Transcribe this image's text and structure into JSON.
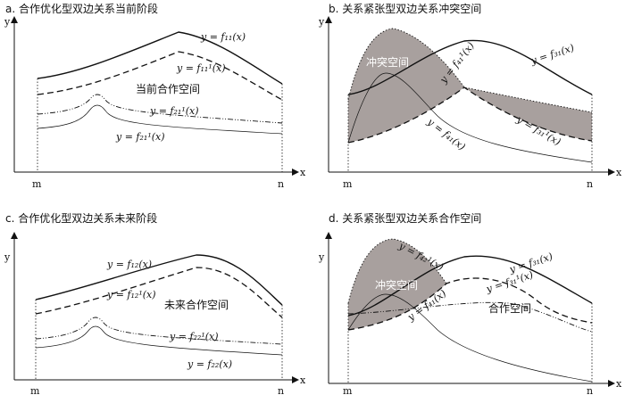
{
  "panels": {
    "a": {
      "title": "a. 合作优化型双边关系当前阶段",
      "region": "当前合作空间",
      "curves": [
        "y = f₁₁(x)",
        "y = f₁₁¹(x)",
        "y = f₂₁¹(x)",
        "y = f₂₁¹(x)"
      ]
    },
    "b": {
      "title": "b. 关系紧张型双边关系冲突空间",
      "region": "冲突空间",
      "curves": [
        "y = f₃₁(x)",
        "y = f₄₁¹(x)",
        "y = f₄₁(x)",
        "y = f₃₁¹(x)"
      ]
    },
    "c": {
      "title": "c. 合作优化型双边关系未来阶段",
      "region": "未来合作空间",
      "curves": [
        "y = f₁₂(x)",
        "y = f₁₂¹(x)",
        "y = f₂₂¹(x)",
        "y = f₂₂(x)"
      ]
    },
    "d": {
      "title": "d. 关系紧张型双边关系合作空间",
      "region_conflict": "冲突空间",
      "region_coop": "合作空间",
      "curves": [
        "y = f₄₂¹(x)",
        "y = f₃₁(x)",
        "y = f₃₁¹(x)",
        "y = f₄₁(x)"
      ]
    }
  },
  "axes": {
    "x_label": "x",
    "y_label": "y",
    "m": "m",
    "n": "n"
  },
  "colors": {
    "conflict_fill": "#a8a09e",
    "line": "#111111"
  }
}
